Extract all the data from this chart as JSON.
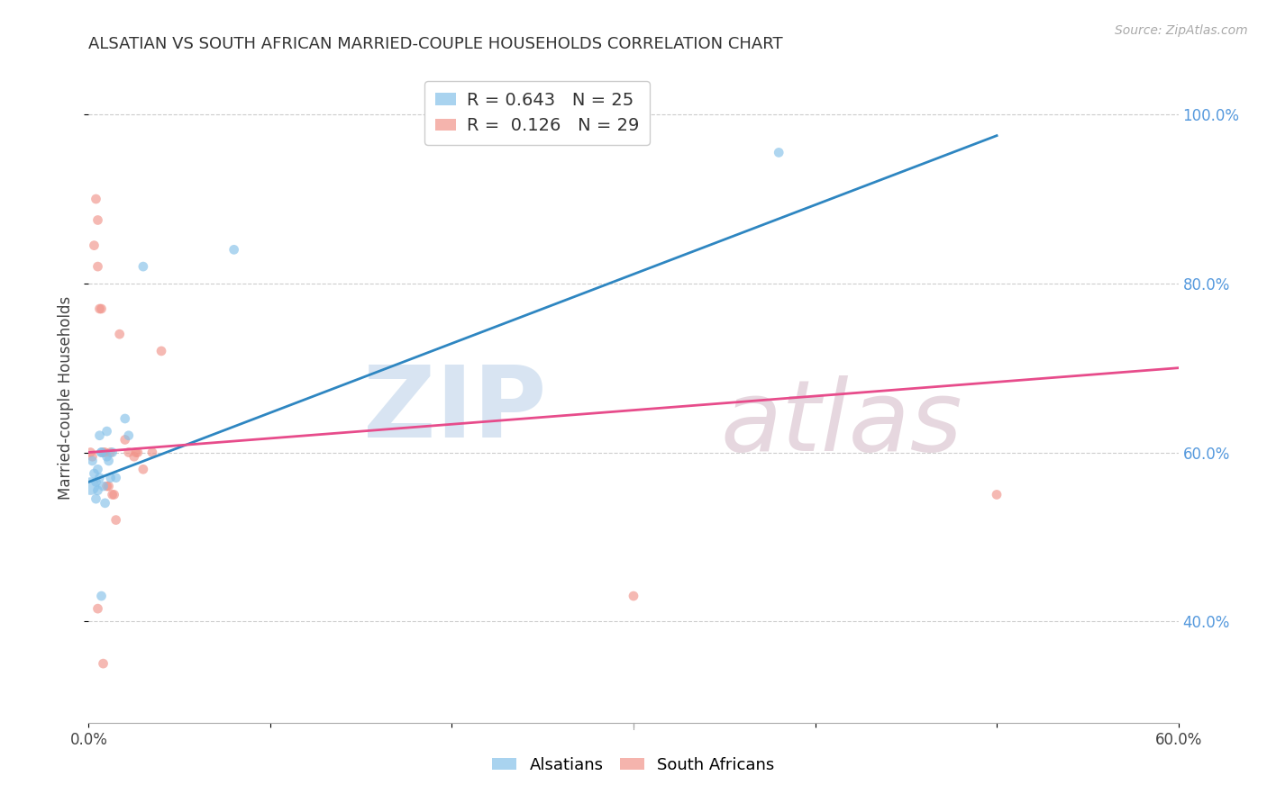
{
  "title": "ALSATIAN VS SOUTH AFRICAN MARRIED-COUPLE HOUSEHOLDS CORRELATION CHART",
  "source": "Source: ZipAtlas.com",
  "ylabel": "Married-couple Households",
  "xlim": [
    0.0,
    0.6
  ],
  "ylim": [
    0.28,
    1.05
  ],
  "x_ticks": [
    0.0,
    0.1,
    0.2,
    0.3,
    0.4,
    0.5,
    0.6
  ],
  "x_tick_labels": [
    "0.0%",
    "",
    "",
    "",
    "",
    "",
    "60.0%"
  ],
  "y_ticks": [
    0.4,
    0.6,
    0.8,
    1.0
  ],
  "y_tick_labels": [
    "40.0%",
    "60.0%",
    "80.0%",
    "100.0%"
  ],
  "alsatian_color": "#85c1e9",
  "southafrican_color": "#f1948a",
  "blue_line_color": "#2e86c1",
  "pink_line_color": "#e74c8b",
  "R_alsatian": 0.643,
  "N_alsatian": 25,
  "R_southafrican": 0.126,
  "N_southafrican": 29,
  "watermark_zip": "ZIP",
  "watermark_atlas": "atlas",
  "watermark_color_zip": "#b8cfe8",
  "watermark_color_atlas": "#c8a8b8",
  "background_color": "#ffffff",
  "grid_color": "#cccccc",
  "alsatian_x": [
    0.001,
    0.002,
    0.003,
    0.004,
    0.004,
    0.005,
    0.005,
    0.006,
    0.006,
    0.007,
    0.007,
    0.008,
    0.009,
    0.01,
    0.01,
    0.011,
    0.012,
    0.013,
    0.015,
    0.02,
    0.022,
    0.03,
    0.08,
    0.38,
    0.007
  ],
  "alsatian_y": [
    0.56,
    0.59,
    0.575,
    0.565,
    0.545,
    0.58,
    0.555,
    0.57,
    0.62,
    0.6,
    0.6,
    0.56,
    0.54,
    0.595,
    0.625,
    0.59,
    0.57,
    0.6,
    0.57,
    0.64,
    0.62,
    0.82,
    0.84,
    0.955,
    0.43
  ],
  "alsatian_sizes": [
    200,
    60,
    60,
    60,
    60,
    60,
    60,
    60,
    60,
    60,
    60,
    60,
    60,
    60,
    60,
    60,
    60,
    60,
    60,
    60,
    60,
    60,
    60,
    60,
    60
  ],
  "southafrican_x": [
    0.001,
    0.002,
    0.003,
    0.004,
    0.005,
    0.005,
    0.006,
    0.007,
    0.008,
    0.009,
    0.01,
    0.011,
    0.012,
    0.013,
    0.014,
    0.015,
    0.017,
    0.02,
    0.022,
    0.025,
    0.026,
    0.027,
    0.03,
    0.035,
    0.04,
    0.3,
    0.5,
    0.005,
    0.008
  ],
  "southafrican_y": [
    0.6,
    0.595,
    0.845,
    0.9,
    0.875,
    0.82,
    0.77,
    0.77,
    0.6,
    0.6,
    0.56,
    0.56,
    0.6,
    0.55,
    0.55,
    0.52,
    0.74,
    0.615,
    0.6,
    0.595,
    0.6,
    0.6,
    0.58,
    0.6,
    0.72,
    0.43,
    0.55,
    0.415,
    0.35
  ],
  "southafrican_sizes": [
    60,
    60,
    60,
    60,
    60,
    60,
    60,
    60,
    60,
    60,
    60,
    60,
    60,
    60,
    60,
    60,
    60,
    60,
    60,
    60,
    60,
    60,
    60,
    60,
    60,
    60,
    60,
    60,
    60
  ],
  "blue_line_x0": 0.0,
  "blue_line_y0": 0.565,
  "blue_line_x1": 0.5,
  "blue_line_y1": 0.975,
  "pink_line_x0": 0.0,
  "pink_line_y0": 0.6,
  "pink_line_x1": 0.6,
  "pink_line_y1": 0.7
}
